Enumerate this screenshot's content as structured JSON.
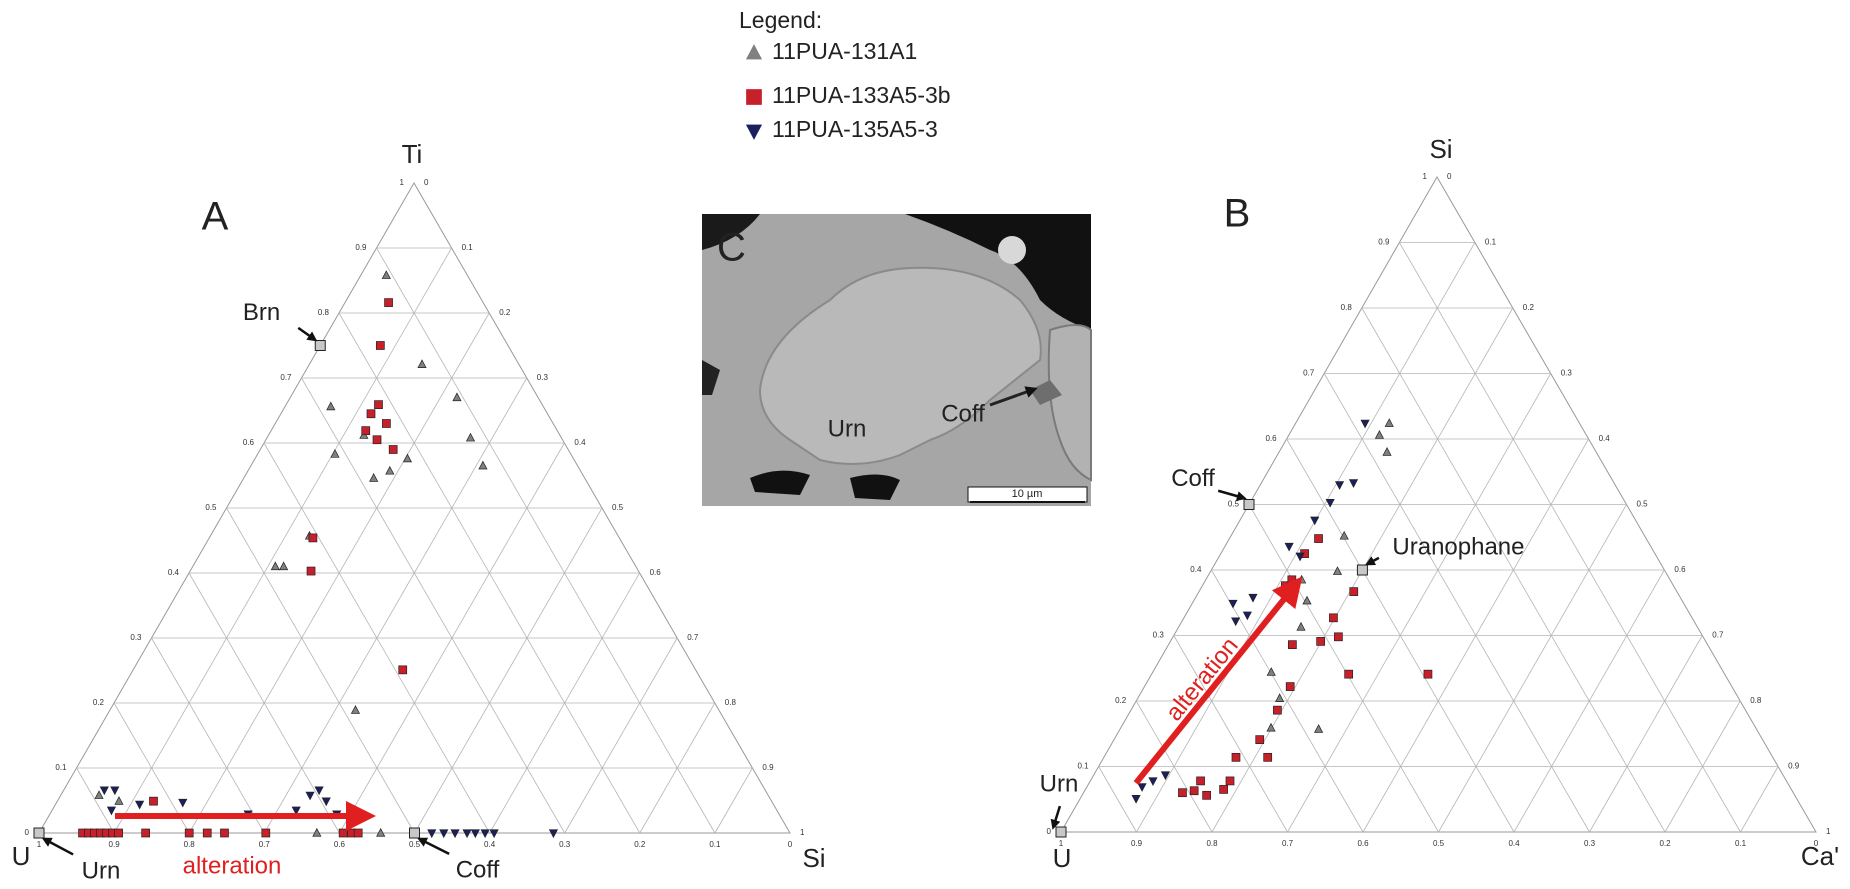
{
  "legend": {
    "title": "Legend:"
  },
  "chart_data": [
    {
      "type": "ternary",
      "panel": "A",
      "vertices": [
        "U",
        "Si",
        "Ti"
      ],
      "ticks": [
        0,
        0.1,
        0.2,
        0.3,
        0.4,
        0.5,
        0.6,
        0.7,
        0.8,
        0.9,
        1
      ],
      "grid": true,
      "annotation": "alteration",
      "series": [
        {
          "name": "11PUA-131A1",
          "color": "#808080",
          "marker": "triangle",
          "x": [
            0.034,
            0.15,
            0.061,
            0.127,
            0.103,
            0.222,
            0.271,
            0.309,
            0.203,
            0.189,
            0.173,
            0.132,
            0.11,
            0.121,
            0.327,
            0.37,
            0.455,
            0.051,
            0.082
          ],
          "values": [
            0.858,
            0.721,
            0.656,
            0.612,
            0.583,
            0.67,
            0.608,
            0.565,
            0.576,
            0.557,
            0.546,
            0.457,
            0.41,
            0.41,
            0.189,
            0,
            0,
            0.058,
            0.049
          ]
        },
        {
          "name": "11PUA-133A5-3b",
          "color": "#c8202a",
          "marker": "square",
          "x": [
            0.058,
            0.08,
            0.123,
            0.12,
            0.148,
            0.148,
            0.177,
            0.126,
            0.138,
            0.161,
            0.359,
            0.128,
            0.058,
            0.066,
            0.074,
            0.082,
            0.09,
            0.098,
            0.106,
            0.142,
            0.2,
            0.224,
            0.247,
            0.302,
            0.405,
            0.416,
            0.425
          ],
          "values": [
            0.816,
            0.75,
            0.659,
            0.645,
            0.63,
            0.605,
            0.59,
            0.619,
            0.454,
            0.403,
            0.251,
            0.049,
            0,
            0,
            0,
            0,
            0,
            0,
            0,
            0,
            0,
            0,
            0,
            0,
            0,
            0,
            0
          ]
        },
        {
          "name": "11PUA-135A5-3",
          "color": "#1b1f5e",
          "marker": "down-triangle",
          "x": [
            0.054,
            0.068,
            0.079,
            0.112,
            0.168,
            0.264,
            0.325,
            0.332,
            0.34,
            0.358,
            0.382,
            0.523,
            0.539,
            0.554,
            0.57,
            0.581,
            0.594,
            0.606,
            0.685
          ],
          "values": [
            0.066,
            0.066,
            0.035,
            0.044,
            0.047,
            0.029,
            0.035,
            0.058,
            0.066,
            0.049,
            0.029,
            0,
            0,
            0,
            0,
            0,
            0,
            0,
            0
          ]
        }
      ],
      "references": [
        {
          "label": "Brn",
          "x": 0,
          "value": 0.75
        },
        {
          "label": "Urn",
          "x": 0,
          "value": 0
        },
        {
          "label": "Coff",
          "x": 0.5,
          "value": 0
        }
      ]
    },
    {
      "type": "ternary",
      "panel": "B",
      "vertices": [
        "U",
        "Ca'",
        "Si"
      ],
      "ticks": [
        0,
        0.1,
        0.2,
        0.3,
        0.4,
        0.5,
        0.6,
        0.7,
        0.8,
        0.9,
        1
      ],
      "grid": true,
      "annotation": "alteration",
      "series": [
        {
          "color": "#808080",
          "marker": "triangle",
          "x": [
            0.12,
            0.124,
            0.143,
            0.15,
            0.168,
            0.127,
            0.15,
            0.162,
            0.157,
            0.188,
            0.199,
            0.263
          ],
          "values": [
            0.606,
            0.624,
            0.58,
            0.452,
            0.398,
            0.385,
            0.353,
            0.313,
            0.244,
            0.204,
            0.159,
            0.157
          ]
        },
        {
          "color": "#c8202a",
          "marker": "square",
          "x": [
            0.11,
            0.114,
            0.118,
            0.111,
            0.205,
            0.198,
            0.219,
            0.199,
            0.164,
            0.261,
            0.366,
            0.193,
            0.194,
            0.193,
            0.217,
            0.175,
            0.183,
            0.165,
            0.145,
            0.131,
            0.185,
            0.146
          ],
          "values": [
            0.376,
            0.385,
            0.448,
            0.425,
            0.367,
            0.327,
            0.298,
            0.291,
            0.286,
            0.241,
            0.241,
            0.222,
            0.186,
            0.141,
            0.114,
            0.114,
            0.065,
            0.056,
            0.063,
            0.06,
            0.078,
            0.078
          ]
        },
        {
          "color": "#1b1f5e",
          "marker": "down-triangle",
          "x": [
            0.092,
            0.122,
            0.105,
            0.106,
            0.099,
            0.085,
            0.107,
            0.071,
            0.082,
            0.054,
            0.076,
            0.095,
            0.083,
            0.073,
            0.074
          ],
          "values": [
            0.624,
            0.533,
            0.53,
            0.503,
            0.476,
            0.436,
            0.421,
            0.322,
            0.331,
            0.349,
            0.358,
            0.087,
            0.078,
            0.069,
            0.051
          ]
        }
      ],
      "references": [
        {
          "label": "Urn",
          "x": 0,
          "value": 0
        },
        {
          "label": "Coff",
          "x": 0,
          "value": 0.5
        },
        {
          "label": "Uranophane",
          "x": 0.2,
          "value": 0.4
        }
      ]
    }
  ],
  "image": {
    "panel": "C",
    "labels": [
      "Urn",
      "Coff"
    ],
    "scale_bar": "10 µm"
  }
}
